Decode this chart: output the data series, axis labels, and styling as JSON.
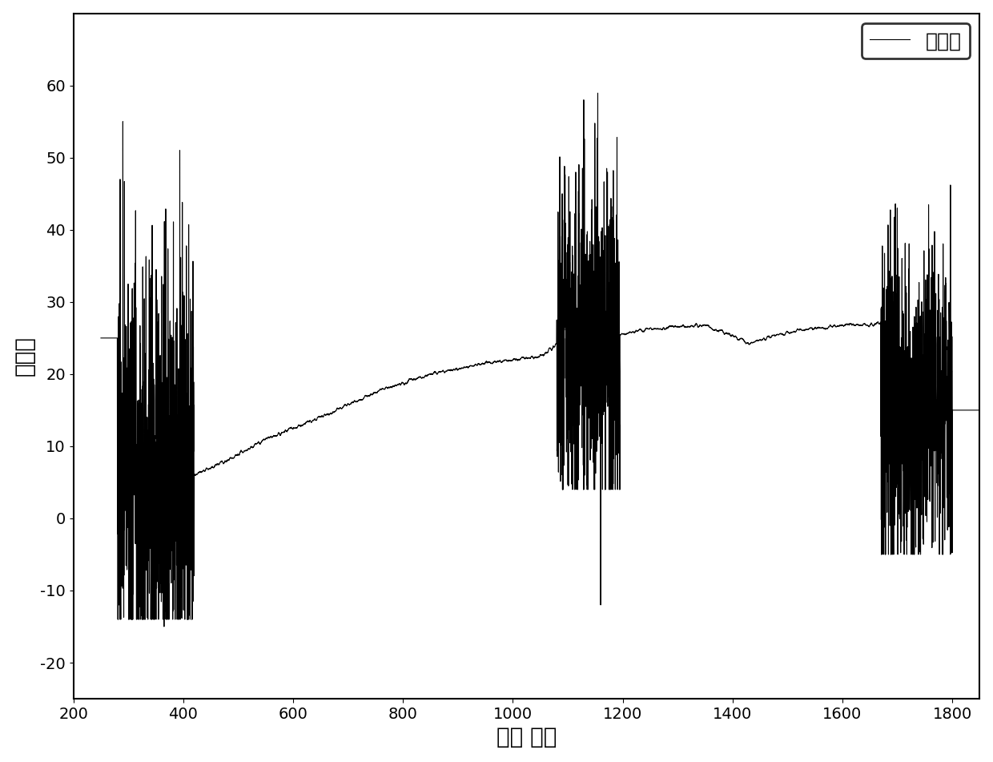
{
  "title": "",
  "xlabel": "光谱 波长",
  "ylabel": "反射率",
  "legend_label": "反射率",
  "xlim": [
    200,
    1850
  ],
  "ylim": [
    -25,
    70
  ],
  "xticks": [
    200,
    400,
    600,
    800,
    1000,
    1200,
    1400,
    1600,
    1800
  ],
  "yticks": [
    -20,
    -10,
    0,
    10,
    20,
    30,
    40,
    50,
    60
  ],
  "line_color": "#000000",
  "background_color": "#ffffff",
  "line_width": 0.8,
  "noise_region1_start": 280,
  "noise_region1_end": 420,
  "noise_region2_start": 1080,
  "noise_region2_end": 1195,
  "noise_region3_start": 1670,
  "noise_region3_end": 1800,
  "smooth_start": 420,
  "smooth_end": 1080,
  "mid_start": 1195,
  "mid_end": 1670
}
